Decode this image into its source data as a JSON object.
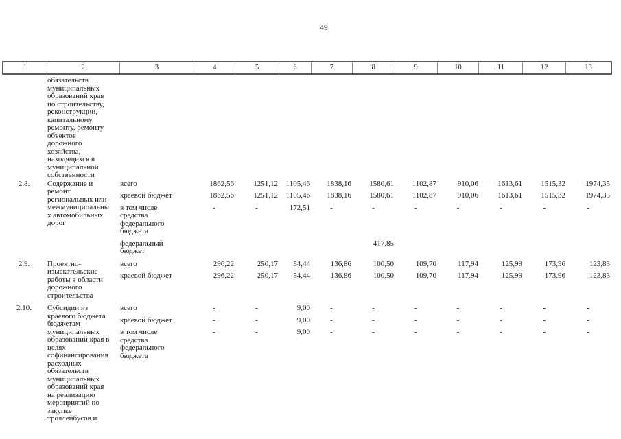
{
  "page_number": "49",
  "table": {
    "header_cells": [
      "1",
      "2",
      "3",
      "4",
      "5",
      "6",
      "7",
      "8",
      "9",
      "10",
      "11",
      "12",
      "13"
    ],
    "continuation_text": "обязательств\nмуниципальных\nобразований края\nпо строительству,\nреконструкции,\nкапитальному\nремонту, ремонту\nобъектов\nдорожного\nхозяйства,\nнаходящихся в\nмуниципальной\nсобственности",
    "rows": [
      {
        "num": "2.8.",
        "name": "Содержание и\nремонт\nрегиональных или\nмежмуниципальны\nх автомобильных\nдорог",
        "subrows": [
          {
            "label": "всего",
            "values": [
              "1862,56",
              "1251,12",
              "1105,46",
              "1838,16",
              "1580,61",
              "1102,87",
              "910,06",
              "1613,61",
              "1515,32",
              "1974,35"
            ]
          },
          {
            "label": "краевой бюджет",
            "values": [
              "1862,56",
              "1251,12",
              "1105,46",
              "1838,16",
              "1580,61",
              "1102,87",
              "910,06",
              "1613,61",
              "1515,32",
              "1974,35"
            ]
          },
          {
            "label": "в том числе\nсредства\nфедерального\nбюджета",
            "values": [
              "-",
              "-",
              "172,51",
              "-",
              "-",
              "-",
              "-",
              "-",
              "-",
              "-"
            ]
          },
          {
            "label": "федеральный\nбюджет",
            "values": [
              "",
              "",
              "",
              "",
              "417,85",
              "",
              "",
              "",
              "",
              ""
            ]
          }
        ]
      },
      {
        "num": "2.9.",
        "name": "Проектно-\nизыскательские\nработы в области\nдорожного\nстроительства",
        "subrows": [
          {
            "label": "всего",
            "values": [
              "296,22",
              "250,17",
              "54,44",
              "136,86",
              "100,50",
              "109,70",
              "117,94",
              "125,99",
              "173,96",
              "123,83"
            ]
          },
          {
            "label": "краевой бюджет",
            "values": [
              "296,22",
              "250,17",
              "54,44",
              "136,86",
              "100,50",
              "109,70",
              "117,94",
              "125,99",
              "173,96",
              "123,83"
            ]
          }
        ]
      },
      {
        "num": "2.10.",
        "name": "Субсидии из\nкраевого бюджета\nбюджетам\nмуниципальных\nобразований края в\nцелях\nсофинансирования\nрасходных\nобязательств\nмуниципальных\nобразований края\nна реализацию\nмероприятий по\nзакупке\nтроллейбусов и",
        "subrows": [
          {
            "label": "всего",
            "values": [
              "-",
              "-",
              "9,00",
              "-",
              "-",
              "-",
              "-",
              "-",
              "-",
              "-"
            ]
          },
          {
            "label": "краевой бюджет",
            "values": [
              "-",
              "-",
              "9,00",
              "-",
              "-",
              "-",
              "-",
              "-",
              "-",
              "-"
            ]
          },
          {
            "label": "в том числе\nсредства\nфедерального\nбюджета",
            "values": [
              "-",
              "-",
              "9,00",
              "-",
              "-",
              "-",
              "-",
              "-",
              "-",
              "-"
            ]
          }
        ]
      }
    ]
  }
}
